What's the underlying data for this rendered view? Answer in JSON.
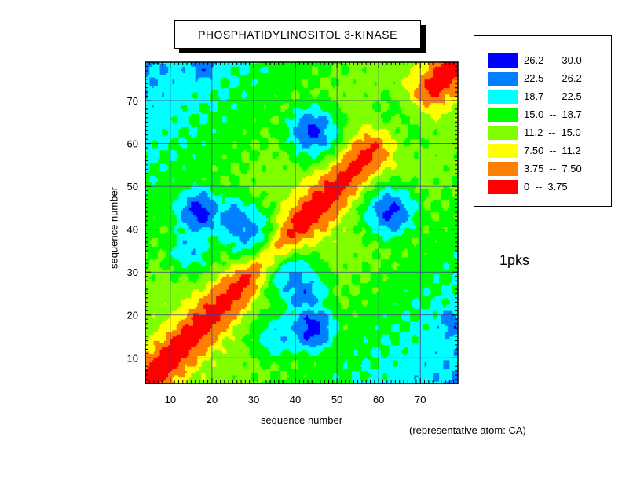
{
  "chart_data": {
    "type": "heatmap",
    "title": "PHOSPHATIDYLINOSITOL 3-KINASE",
    "xlabel": "sequence number",
    "ylabel": "sequence number",
    "xlim": [
      4,
      79
    ],
    "ylim": [
      4,
      79
    ],
    "x_ticks": [
      10,
      20,
      30,
      40,
      50,
      60,
      70
    ],
    "y_ticks": [
      10,
      20,
      30,
      40,
      50,
      60,
      70
    ],
    "grid": true,
    "legend_position": "right",
    "legend": [
      {
        "label": "26.2  --  30.0",
        "color": "#0000ff",
        "min": 26.2,
        "max": 30.0
      },
      {
        "label": "22.5  --  26.2",
        "color": "#0080ff",
        "min": 22.5,
        "max": 26.2
      },
      {
        "label": "18.7  --  22.5",
        "color": "#00ffff",
        "min": 18.7,
        "max": 22.5
      },
      {
        "label": "15.0  --  18.7",
        "color": "#00ff00",
        "min": 15.0,
        "max": 18.7
      },
      {
        "label": "11.2  --  15.0",
        "color": "#80ff00",
        "min": 11.2,
        "max": 15.0
      },
      {
        "label": "7.50  --  11.2",
        "color": "#ffff00",
        "min": 7.5,
        "max": 11.2
      },
      {
        "label": "3.75  --  7.50",
        "color": "#ff8000",
        "min": 3.75,
        "max": 7.5
      },
      {
        "label": "0  --  3.75",
        "color": "#ff0000",
        "min": 0,
        "max": 3.75
      }
    ],
    "peaks": [
      {
        "x": 17,
        "y": 44,
        "value": 28
      },
      {
        "x": 44,
        "y": 17,
        "value": 28
      },
      {
        "x": 25,
        "y": 42,
        "value": 25
      },
      {
        "x": 42,
        "y": 25,
        "value": 25
      },
      {
        "x": 44,
        "y": 63,
        "value": 27
      },
      {
        "x": 63,
        "y": 44,
        "value": 27
      },
      {
        "x": 15,
        "y": 36,
        "value": 22
      },
      {
        "x": 36,
        "y": 15,
        "value": 22
      },
      {
        "x": 40,
        "y": 28,
        "value": 24
      },
      {
        "x": 28,
        "y": 40,
        "value": 24
      },
      {
        "x": 78,
        "y": 18,
        "value": 25
      },
      {
        "x": 18,
        "y": 78,
        "value": 25
      },
      {
        "x": 68,
        "y": 63,
        "value": 16
      },
      {
        "x": 63,
        "y": 68,
        "value": 16
      }
    ]
  },
  "annotations": {
    "protein_id": "1pks",
    "representative_atom": "(representative atom: CA)"
  }
}
